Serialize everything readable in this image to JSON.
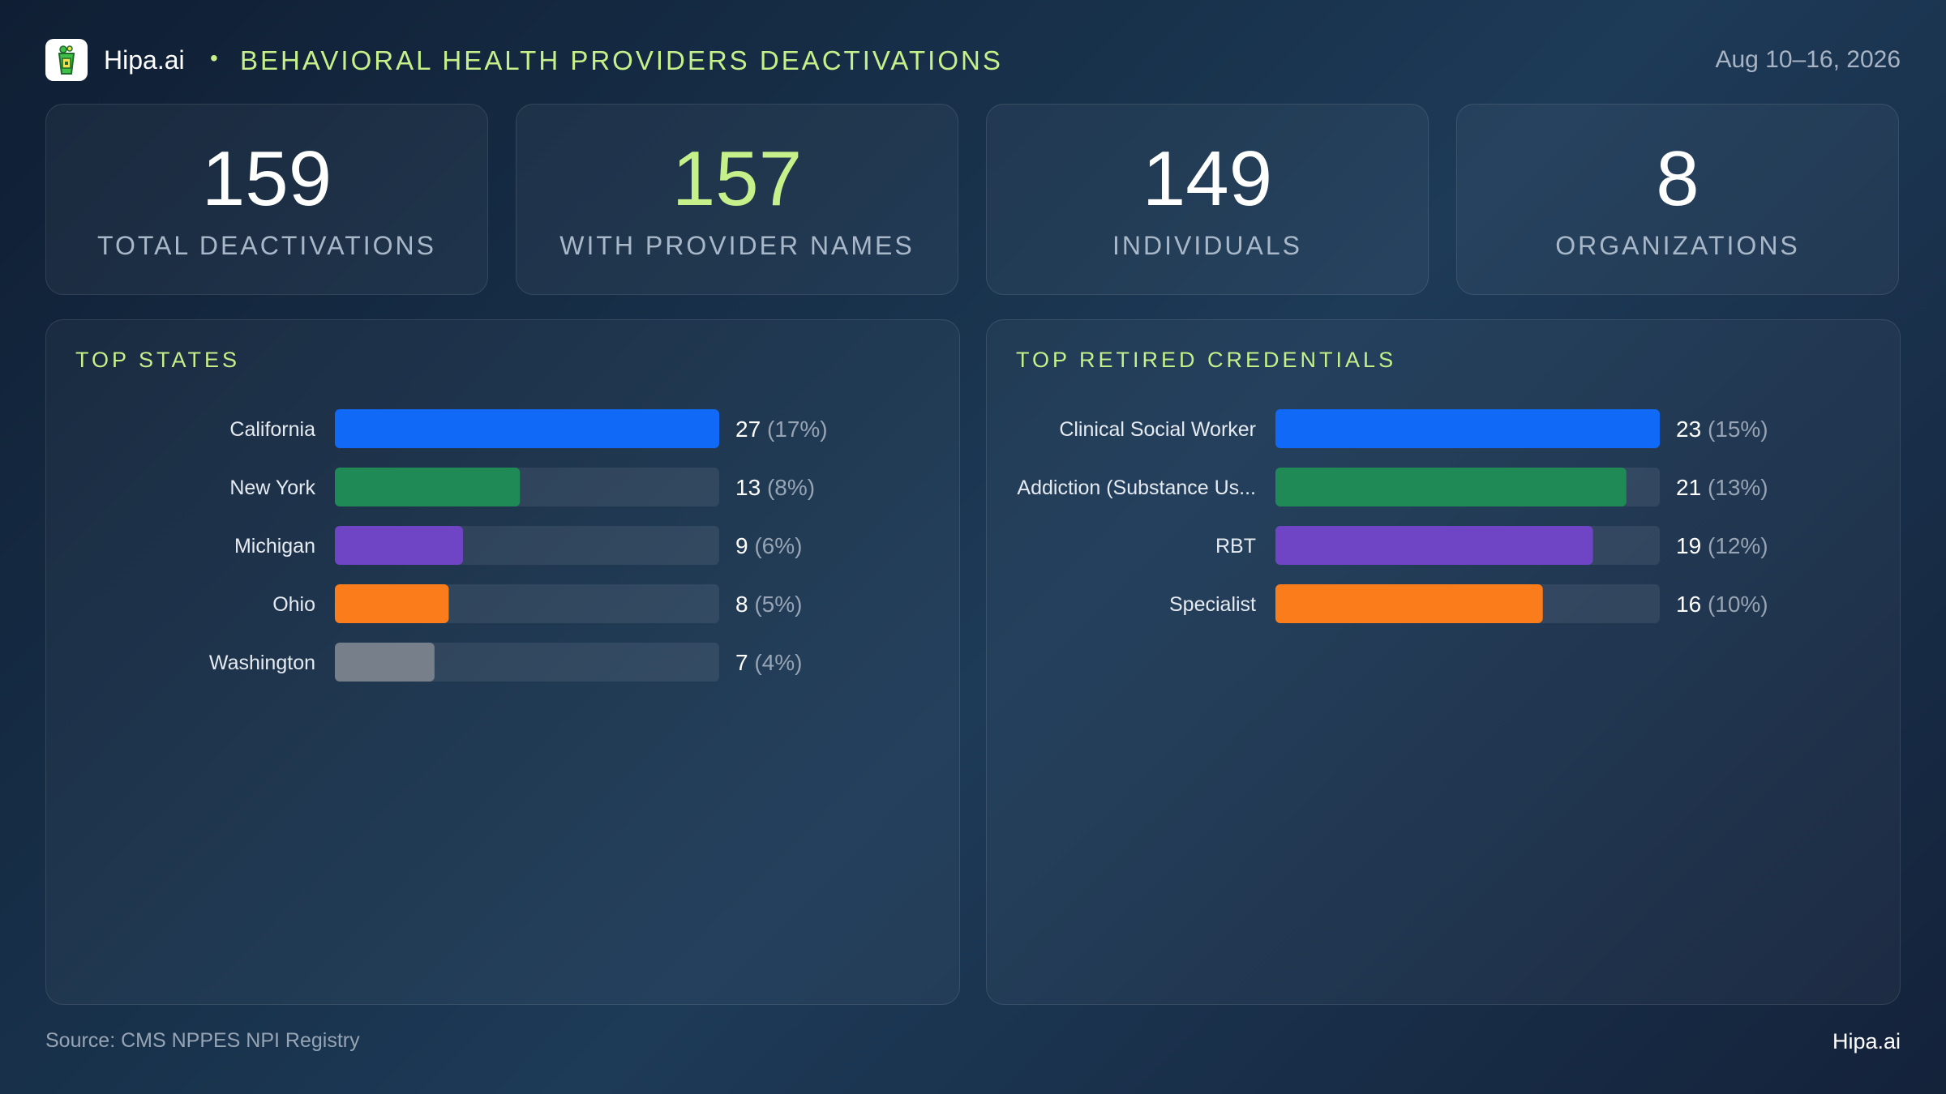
{
  "header": {
    "brand": "Hipa.ai",
    "separator": "•",
    "title": "BEHAVIORAL HEALTH PROVIDERS DEACTIVATIONS",
    "date_range": "Aug 10–16, 2026"
  },
  "kpis": [
    {
      "value": "159",
      "label": "TOTAL DEACTIVATIONS",
      "color": "#ffffff"
    },
    {
      "value": "157",
      "label": "WITH PROVIDER NAMES",
      "color": "#c6f08a"
    },
    {
      "value": "149",
      "label": "INDIVIDUALS",
      "color": "#ffffff"
    },
    {
      "value": "8",
      "label": "ORGANIZATIONS",
      "color": "#ffffff"
    }
  ],
  "footer": {
    "source": "Source: CMS NPPES NPI Registry",
    "brand": "Hipa.ai"
  },
  "chart_data": [
    {
      "type": "bar",
      "orientation": "horizontal",
      "title": "TOP STATES",
      "categories": [
        "California",
        "New York",
        "Michigan",
        "Ohio",
        "Washington"
      ],
      "values": [
        27,
        13,
        9,
        8,
        7
      ],
      "percent_labels": [
        "(17%)",
        "(8%)",
        "(6%)",
        "(5%)",
        "(4%)"
      ],
      "colors": [
        "#1169f7",
        "#1f8a56",
        "#6f45c6",
        "#fb7c1b",
        "#767f8a"
      ],
      "xlim": [
        0,
        27
      ]
    },
    {
      "type": "bar",
      "orientation": "horizontal",
      "title": "TOP RETIRED CREDENTIALS",
      "categories": [
        "Clinical Social Worker",
        "Addiction (Substance Us...",
        "RBT",
        "Specialist"
      ],
      "values": [
        23,
        21,
        19,
        16
      ],
      "percent_labels": [
        "(15%)",
        "(13%)",
        "(12%)",
        "(10%)"
      ],
      "colors": [
        "#1169f7",
        "#1f8a56",
        "#6f45c6",
        "#fb7c1b"
      ],
      "xlim": [
        0,
        23
      ]
    }
  ]
}
